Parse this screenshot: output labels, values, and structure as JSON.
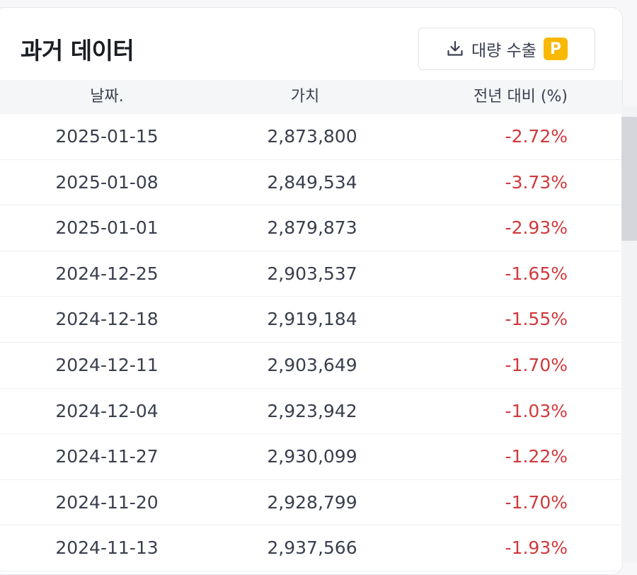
{
  "panel": {
    "title": "과거 데이터",
    "export_label": "대량 수출",
    "premium_badge": "P"
  },
  "table": {
    "headers": {
      "date": "날짜.",
      "value": "가치",
      "change": "전년 대비 (%)"
    },
    "rows": [
      {
        "date": "2025-01-15",
        "value": "2,873,800",
        "change": "-2.72%"
      },
      {
        "date": "2025-01-08",
        "value": "2,849,534",
        "change": "-3.73%"
      },
      {
        "date": "2025-01-01",
        "value": "2,879,873",
        "change": "-2.93%"
      },
      {
        "date": "2024-12-25",
        "value": "2,903,537",
        "change": "-1.65%"
      },
      {
        "date": "2024-12-18",
        "value": "2,919,184",
        "change": "-1.55%"
      },
      {
        "date": "2024-12-11",
        "value": "2,903,649",
        "change": "-1.70%"
      },
      {
        "date": "2024-12-04",
        "value": "2,923,942",
        "change": "-1.03%"
      },
      {
        "date": "2024-11-27",
        "value": "2,930,099",
        "change": "-1.22%"
      },
      {
        "date": "2024-11-20",
        "value": "2,928,799",
        "change": "-1.70%"
      },
      {
        "date": "2024-11-13",
        "value": "2,937,566",
        "change": "-1.93%"
      }
    ]
  },
  "colors": {
    "negative": "#d0393c",
    "badge": "#f9b801",
    "header_bg": "#f5f6f8"
  },
  "icons": {
    "export": "download-icon"
  }
}
